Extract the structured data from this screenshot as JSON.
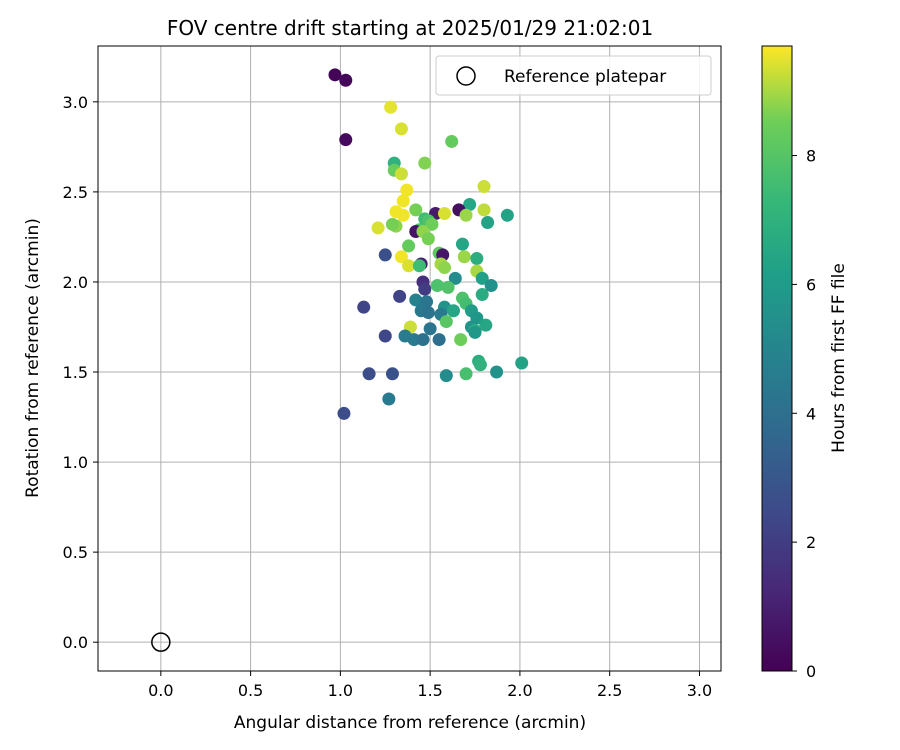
{
  "chart_data": {
    "type": "scatter",
    "title": "FOV centre drift starting at 2025/01/29 21:02:01",
    "xlabel": "Angular distance from reference (arcmin)",
    "ylabel": "Rotation from reference (arcmin)",
    "xlim": [
      -0.35,
      3.12
    ],
    "ylim": [
      -0.16,
      3.31
    ],
    "xticks": [
      "0.0",
      "0.5",
      "1.0",
      "1.5",
      "2.0",
      "2.5",
      "3.0"
    ],
    "yticks": [
      "0.0",
      "0.5",
      "1.0",
      "1.5",
      "2.0",
      "2.5",
      "3.0"
    ],
    "grid": true,
    "legend": {
      "position": "top-right",
      "entries": [
        "Reference platepar"
      ]
    },
    "reference": {
      "x": 0.0,
      "y": 0.0
    },
    "colorbar": {
      "label": "Hours from first FF file",
      "colormap": "viridis",
      "range": [
        0,
        9.7
      ],
      "ticks": [
        "0",
        "2",
        "4",
        "6",
        "8"
      ]
    },
    "points": [
      {
        "x": 0.97,
        "y": 3.15,
        "c": 0.1
      },
      {
        "x": 1.03,
        "y": 3.12,
        "c": 0.2
      },
      {
        "x": 1.03,
        "y": 2.79,
        "c": 0.3
      },
      {
        "x": 1.28,
        "y": 2.97,
        "c": 9.5
      },
      {
        "x": 1.34,
        "y": 2.85,
        "c": 9.4
      },
      {
        "x": 1.62,
        "y": 2.78,
        "c": 8.3
      },
      {
        "x": 1.3,
        "y": 2.66,
        "c": 7.0
      },
      {
        "x": 1.47,
        "y": 2.66,
        "c": 8.7
      },
      {
        "x": 1.3,
        "y": 2.62,
        "c": 8.4
      },
      {
        "x": 1.34,
        "y": 2.6,
        "c": 9.3
      },
      {
        "x": 1.8,
        "y": 2.53,
        "c": 9.3
      },
      {
        "x": 1.37,
        "y": 2.51,
        "c": 9.6
      },
      {
        "x": 1.35,
        "y": 2.45,
        "c": 9.6
      },
      {
        "x": 1.72,
        "y": 2.43,
        "c": 6.5
      },
      {
        "x": 1.66,
        "y": 2.4,
        "c": 0.5
      },
      {
        "x": 1.8,
        "y": 2.4,
        "c": 9.2
      },
      {
        "x": 1.31,
        "y": 2.39,
        "c": 9.6
      },
      {
        "x": 1.42,
        "y": 2.4,
        "c": 8.6
      },
      {
        "x": 1.53,
        "y": 2.38,
        "c": 0.8
      },
      {
        "x": 1.58,
        "y": 2.38,
        "c": 9.4
      },
      {
        "x": 1.7,
        "y": 2.37,
        "c": 8.9
      },
      {
        "x": 1.93,
        "y": 2.37,
        "c": 6.3
      },
      {
        "x": 1.35,
        "y": 2.37,
        "c": 9.6
      },
      {
        "x": 1.47,
        "y": 2.35,
        "c": 7.5
      },
      {
        "x": 1.49,
        "y": 2.34,
        "c": 7.8
      },
      {
        "x": 1.51,
        "y": 2.32,
        "c": 8.5
      },
      {
        "x": 1.82,
        "y": 2.33,
        "c": 6.3
      },
      {
        "x": 1.31,
        "y": 2.31,
        "c": 8.8
      },
      {
        "x": 1.44,
        "y": 2.29,
        "c": 7.9
      },
      {
        "x": 1.29,
        "y": 2.32,
        "c": 8.6
      },
      {
        "x": 1.21,
        "y": 2.3,
        "c": 9.4
      },
      {
        "x": 1.42,
        "y": 2.28,
        "c": 0.6
      },
      {
        "x": 1.46,
        "y": 2.28,
        "c": 8.8
      },
      {
        "x": 1.49,
        "y": 2.24,
        "c": 8.6
      },
      {
        "x": 1.68,
        "y": 2.21,
        "c": 6.5
      },
      {
        "x": 1.38,
        "y": 2.2,
        "c": 8.3
      },
      {
        "x": 1.25,
        "y": 2.15,
        "c": 2.7
      },
      {
        "x": 1.55,
        "y": 2.16,
        "c": 8.2
      },
      {
        "x": 1.57,
        "y": 2.15,
        "c": 0.7
      },
      {
        "x": 1.34,
        "y": 2.14,
        "c": 9.6
      },
      {
        "x": 1.69,
        "y": 2.14,
        "c": 8.9
      },
      {
        "x": 1.76,
        "y": 2.13,
        "c": 6.8
      },
      {
        "x": 1.45,
        "y": 2.1,
        "c": 1.0
      },
      {
        "x": 1.56,
        "y": 2.1,
        "c": 9.0
      },
      {
        "x": 1.38,
        "y": 2.09,
        "c": 9.4
      },
      {
        "x": 1.44,
        "y": 2.09,
        "c": 7.5
      },
      {
        "x": 1.58,
        "y": 2.08,
        "c": 8.8
      },
      {
        "x": 1.76,
        "y": 2.06,
        "c": 9.0
      },
      {
        "x": 1.64,
        "y": 2.02,
        "c": 5.3
      },
      {
        "x": 1.79,
        "y": 2.02,
        "c": 6.2
      },
      {
        "x": 1.46,
        "y": 2.0,
        "c": 1.5
      },
      {
        "x": 1.84,
        "y": 1.98,
        "c": 5.5
      },
      {
        "x": 1.54,
        "y": 1.98,
        "c": 7.8
      },
      {
        "x": 1.6,
        "y": 1.97,
        "c": 7.9
      },
      {
        "x": 1.47,
        "y": 1.96,
        "c": 2.0
      },
      {
        "x": 1.79,
        "y": 1.93,
        "c": 6.7
      },
      {
        "x": 1.68,
        "y": 1.91,
        "c": 7.8
      },
      {
        "x": 1.33,
        "y": 1.92,
        "c": 2.2
      },
      {
        "x": 1.42,
        "y": 1.9,
        "c": 4.8
      },
      {
        "x": 1.48,
        "y": 1.89,
        "c": 4.3
      },
      {
        "x": 1.7,
        "y": 1.88,
        "c": 7.6
      },
      {
        "x": 1.13,
        "y": 1.86,
        "c": 2.3
      },
      {
        "x": 1.58,
        "y": 1.86,
        "c": 5.6
      },
      {
        "x": 1.73,
        "y": 1.84,
        "c": 6.0
      },
      {
        "x": 1.45,
        "y": 1.84,
        "c": 4.4
      },
      {
        "x": 1.63,
        "y": 1.84,
        "c": 6.5
      },
      {
        "x": 1.49,
        "y": 1.83,
        "c": 4.2
      },
      {
        "x": 1.56,
        "y": 1.82,
        "c": 4.5
      },
      {
        "x": 1.76,
        "y": 1.8,
        "c": 5.8
      },
      {
        "x": 1.59,
        "y": 1.78,
        "c": 8.1
      },
      {
        "x": 1.81,
        "y": 1.76,
        "c": 6.5
      },
      {
        "x": 1.73,
        "y": 1.75,
        "c": 5.7
      },
      {
        "x": 1.39,
        "y": 1.75,
        "c": 9.3
      },
      {
        "x": 1.5,
        "y": 1.74,
        "c": 4.3
      },
      {
        "x": 1.75,
        "y": 1.73,
        "c": 6.8
      },
      {
        "x": 1.75,
        "y": 1.72,
        "c": 5.8
      },
      {
        "x": 1.36,
        "y": 1.7,
        "c": 4.6
      },
      {
        "x": 1.25,
        "y": 1.7,
        "c": 2.4
      },
      {
        "x": 1.41,
        "y": 1.68,
        "c": 4.5
      },
      {
        "x": 1.46,
        "y": 1.68,
        "c": 4.1
      },
      {
        "x": 1.55,
        "y": 1.68,
        "c": 4.0
      },
      {
        "x": 1.67,
        "y": 1.68,
        "c": 8.5
      },
      {
        "x": 1.77,
        "y": 1.56,
        "c": 6.8
      },
      {
        "x": 1.78,
        "y": 1.54,
        "c": 7.0
      },
      {
        "x": 2.01,
        "y": 1.55,
        "c": 6.3
      },
      {
        "x": 1.16,
        "y": 1.49,
        "c": 2.6
      },
      {
        "x": 1.29,
        "y": 1.49,
        "c": 2.8
      },
      {
        "x": 1.59,
        "y": 1.48,
        "c": 5.3
      },
      {
        "x": 1.7,
        "y": 1.49,
        "c": 7.7
      },
      {
        "x": 1.87,
        "y": 1.5,
        "c": 5.6
      },
      {
        "x": 1.27,
        "y": 1.35,
        "c": 4.5
      },
      {
        "x": 1.02,
        "y": 1.27,
        "c": 2.6
      }
    ]
  }
}
